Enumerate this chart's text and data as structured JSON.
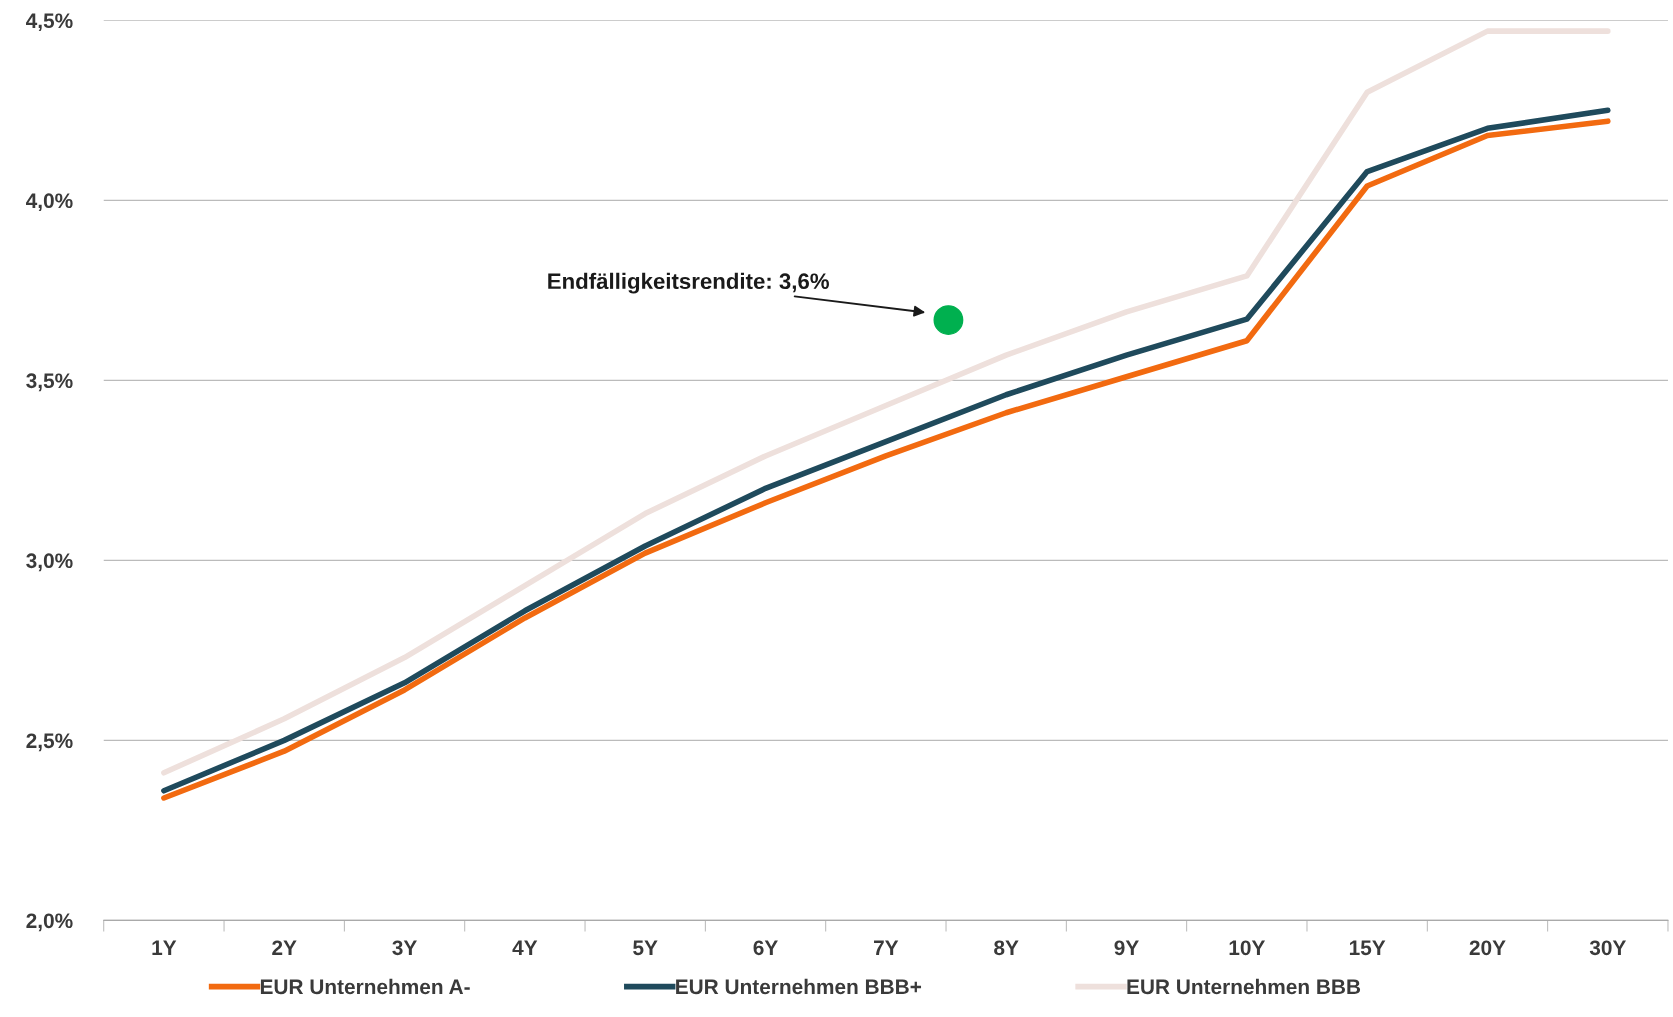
{
  "chart_data": {
    "type": "line",
    "categories": [
      "1Y",
      "2Y",
      "3Y",
      "4Y",
      "5Y",
      "6Y",
      "7Y",
      "8Y",
      "9Y",
      "10Y",
      "15Y",
      "20Y",
      "30Y"
    ],
    "series": [
      {
        "name": "EUR Unternehmen A-",
        "color": "#f26a10",
        "values": [
          2.34,
          2.47,
          2.64,
          2.84,
          3.02,
          3.16,
          3.29,
          3.41,
          3.51,
          3.61,
          4.04,
          4.18,
          4.22
        ]
      },
      {
        "name": "EUR Unternehmen BBB+",
        "color": "#1f4a5c",
        "values": [
          2.36,
          2.5,
          2.66,
          2.86,
          3.04,
          3.2,
          3.33,
          3.46,
          3.57,
          3.67,
          4.08,
          4.2,
          4.25
        ]
      },
      {
        "name": "EUR Unternehmen BBB",
        "color": "#eee0dc",
        "values": [
          2.41,
          2.56,
          2.73,
          2.93,
          3.13,
          3.29,
          3.43,
          3.57,
          3.69,
          3.79,
          4.3,
          4.47,
          4.47
        ]
      }
    ],
    "ylim": [
      2.0,
      4.5
    ],
    "yticks": [
      {
        "value": 2.0,
        "label": "2,0%"
      },
      {
        "value": 2.5,
        "label": "2,5%"
      },
      {
        "value": 3.0,
        "label": "3,0%"
      },
      {
        "value": 3.5,
        "label": "3,5%"
      },
      {
        "value": 4.0,
        "label": "4,0%"
      },
      {
        "value": 4.5,
        "label": "4,5%"
      }
    ],
    "grid": "y",
    "legend": "bottom",
    "marker": "none",
    "line_style": "solid",
    "annotations": [
      "Endfälligkeitsrendite: 3,6%"
    ]
  }
}
